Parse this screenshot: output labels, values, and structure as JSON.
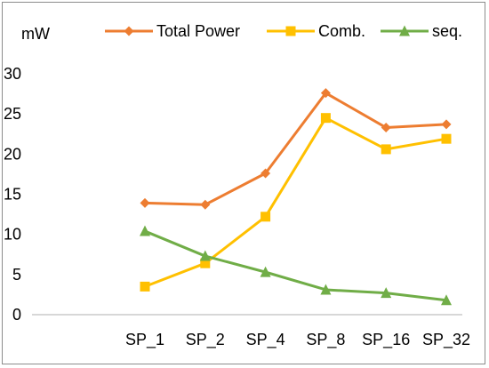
{
  "chart_data": {
    "type": "line",
    "unit_label": "mW",
    "categories": [
      "SP_1",
      "SP_2",
      "SP_4",
      "SP_8",
      "SP_16",
      "SP_32"
    ],
    "ylim": [
      0,
      30
    ],
    "yticks": [
      "0",
      "5",
      "10",
      "15",
      "20",
      "25",
      "30"
    ],
    "grid": false,
    "legend_position": "top",
    "series": [
      {
        "name": "Total Power",
        "values": [
          13.9,
          13.7,
          17.6,
          27.6,
          23.3,
          23.7
        ],
        "color": "#ED7D31",
        "marker": "diamond"
      },
      {
        "name": "Comb.",
        "values": [
          3.5,
          6.4,
          12.2,
          24.5,
          20.6,
          21.9
        ],
        "color": "#FFC000",
        "marker": "square"
      },
      {
        "name": "seq.",
        "values": [
          10.4,
          7.3,
          5.3,
          3.1,
          2.7,
          1.8
        ],
        "color": "#70AD47",
        "marker": "triangle"
      }
    ]
  }
}
